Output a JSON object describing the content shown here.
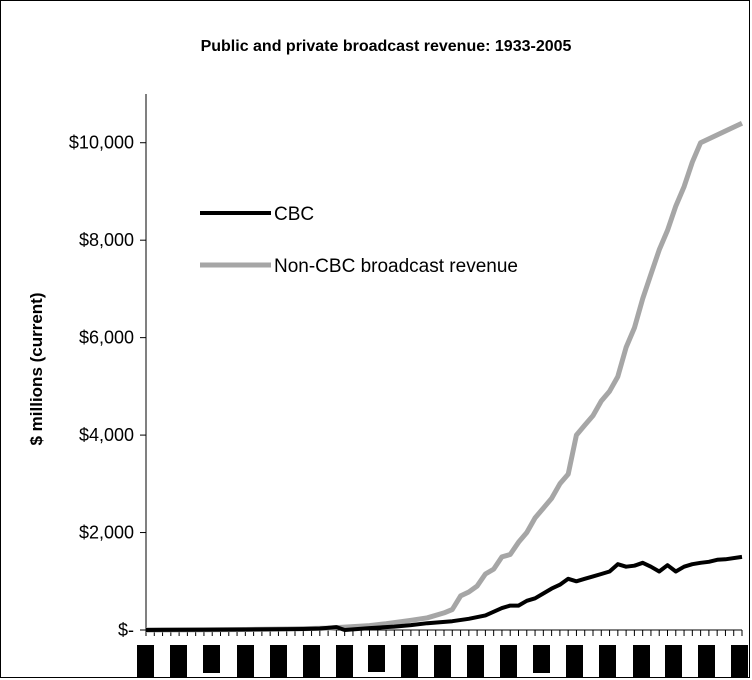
{
  "chart_data": {
    "type": "line",
    "title": "Public and private broadcast revenue: 1933-2005",
    "xlabel": "",
    "ylabel": "$ millions (current)",
    "xlim": [
      1933,
      2005
    ],
    "ylim": [
      0,
      11000
    ],
    "yticks": [
      0,
      2000,
      4000,
      6000,
      8000,
      10000
    ],
    "ytick_labels": [
      "$-",
      "$2,000",
      "$4,000",
      "$6,000",
      "$8,000",
      "$10,000"
    ],
    "grid": false,
    "legend_position": "upper-left",
    "x_tick_labels_redacted": true,
    "series": [
      {
        "name": "CBC",
        "color": "#000000",
        "points": [
          [
            1933,
            0
          ],
          [
            1935,
            2
          ],
          [
            1940,
            5
          ],
          [
            1945,
            10
          ],
          [
            1952,
            20
          ],
          [
            1954,
            30
          ],
          [
            1956,
            60
          ],
          [
            1957,
            0
          ],
          [
            1960,
            40
          ],
          [
            1963,
            70
          ],
          [
            1965,
            100
          ],
          [
            1967,
            140
          ],
          [
            1970,
            180
          ],
          [
            1972,
            230
          ],
          [
            1974,
            300
          ],
          [
            1976,
            450
          ],
          [
            1977,
            500
          ],
          [
            1978,
            500
          ],
          [
            1979,
            600
          ],
          [
            1980,
            650
          ],
          [
            1981,
            750
          ],
          [
            1982,
            850
          ],
          [
            1983,
            930
          ],
          [
            1984,
            1050
          ],
          [
            1985,
            1000
          ],
          [
            1986,
            1050
          ],
          [
            1987,
            1100
          ],
          [
            1988,
            1150
          ],
          [
            1989,
            1200
          ],
          [
            1990,
            1350
          ],
          [
            1991,
            1300
          ],
          [
            1992,
            1320
          ],
          [
            1993,
            1380
          ],
          [
            1994,
            1300
          ],
          [
            1995,
            1200
          ],
          [
            1996,
            1330
          ],
          [
            1997,
            1200
          ],
          [
            1998,
            1300
          ],
          [
            1999,
            1350
          ],
          [
            2000,
            1380
          ],
          [
            2001,
            1400
          ],
          [
            2002,
            1440
          ],
          [
            2003,
            1450
          ],
          [
            2005,
            1500
          ]
        ]
      },
      {
        "name": "Non-CBC broadcast revenue",
        "color": "#a6a6a6",
        "points": [
          [
            1933,
            0
          ],
          [
            1940,
            5
          ],
          [
            1945,
            10
          ],
          [
            1950,
            20
          ],
          [
            1955,
            40
          ],
          [
            1957,
            60
          ],
          [
            1960,
            90
          ],
          [
            1962,
            130
          ],
          [
            1965,
            200
          ],
          [
            1967,
            250
          ],
          [
            1969,
            350
          ],
          [
            1970,
            420
          ],
          [
            1971,
            700
          ],
          [
            1972,
            780
          ],
          [
            1973,
            900
          ],
          [
            1974,
            1150
          ],
          [
            1975,
            1250
          ],
          [
            1976,
            1500
          ],
          [
            1977,
            1550
          ],
          [
            1978,
            1800
          ],
          [
            1979,
            2000
          ],
          [
            1980,
            2300
          ],
          [
            1981,
            2500
          ],
          [
            1982,
            2700
          ],
          [
            1983,
            3000
          ],
          [
            1984,
            3200
          ],
          [
            1985,
            4000
          ],
          [
            1986,
            4200
          ],
          [
            1987,
            4400
          ],
          [
            1988,
            4700
          ],
          [
            1989,
            4900
          ],
          [
            1990,
            5200
          ],
          [
            1991,
            5800
          ],
          [
            1992,
            6200
          ],
          [
            1993,
            6800
          ],
          [
            1994,
            7300
          ],
          [
            1995,
            7800
          ],
          [
            1996,
            8200
          ],
          [
            1997,
            8700
          ],
          [
            1998,
            9100
          ],
          [
            1999,
            9600
          ],
          [
            2000,
            10000
          ],
          [
            2005,
            10400
          ]
        ]
      }
    ]
  }
}
